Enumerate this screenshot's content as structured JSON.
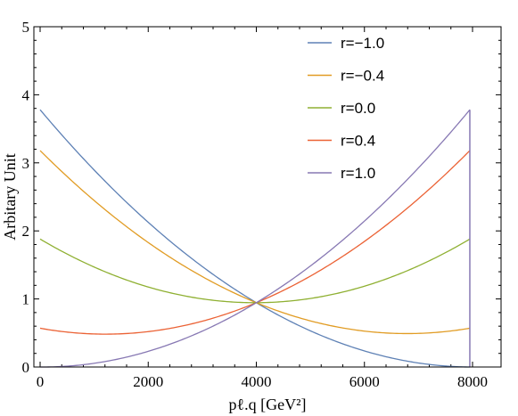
{
  "chart_data": {
    "type": "line",
    "title": "",
    "xlabel": "pℓ.q [GeV²]",
    "ylabel": "Arbitary Unit",
    "xlim": [
      0,
      8000
    ],
    "ylim": [
      0,
      5
    ],
    "xticks": [
      0,
      2000,
      4000,
      6000,
      8000
    ],
    "yticks": [
      0,
      1,
      2,
      3,
      4,
      5
    ],
    "x_tick_labels": [
      "0",
      "2000",
      "4000",
      "6000",
      "8000"
    ],
    "y_tick_labels": [
      "0",
      "1",
      "2",
      "3",
      "4",
      "5"
    ],
    "grid": false,
    "legend_position": "top-right",
    "x_end": 7950,
    "series": [
      {
        "name": "r=−1.0",
        "color": "#5e81b5",
        "y_at_0": 3.78,
        "y_at_4000": 0.945,
        "y_at_end": 0.0
      },
      {
        "name": "r=−0.4",
        "color": "#e19c24",
        "y_at_0": 3.18,
        "y_at_4000": 0.945,
        "y_at_end": 0.57
      },
      {
        "name": "r=0.0",
        "color": "#8fb032",
        "y_at_0": 1.88,
        "y_at_4000": 0.945,
        "y_at_end": 1.88
      },
      {
        "name": "r=0.4",
        "color": "#eb6235",
        "y_at_0": 0.57,
        "y_at_4000": 0.945,
        "y_at_end": 3.18
      },
      {
        "name": "r=1.0",
        "color": "#8778b3",
        "y_at_0": 0.0,
        "y_at_4000": 0.945,
        "y_at_end": 3.78
      }
    ],
    "notes": "Each series is a parabola through its three listed points (x = 0, 4000, x_end)."
  }
}
